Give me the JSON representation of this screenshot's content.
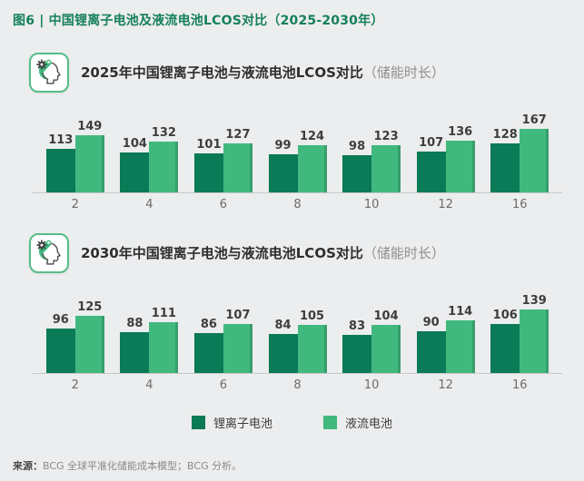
{
  "title": "图6 | 中国锂离子电池及液流电池LCOS对比（2025-2030年）",
  "colors": {
    "title_green": "#15805c",
    "dark_green": "#0b7a57",
    "light_green": "#41b97e",
    "background": "#ecedee",
    "axis_line": "#c6c8c9",
    "icon_border": "#57bd88"
  },
  "icons": {
    "section_badge": "head-with-gear-icon"
  },
  "sections": [
    {
      "title": "2025年中国锂离子电池与液流电池LCOS对比",
      "suffix": "（储能时长）"
    },
    {
      "title": "2030年中国锂离子电池与液流电池LCOS对比",
      "suffix": "（储能时长）"
    }
  ],
  "chart_data": [
    {
      "type": "bar",
      "title": "2025年中国锂离子电池与液流电池LCOS对比（储能时长）",
      "categories": [
        "2",
        "4",
        "6",
        "8",
        "10",
        "12",
        "16"
      ],
      "series": [
        {
          "name": "锂离子电池",
          "color": "#0b7a57",
          "values": [
            113,
            104,
            101,
            99,
            98,
            107,
            128
          ]
        },
        {
          "name": "液流电池",
          "color": "#41b97e",
          "values": [
            149,
            132,
            127,
            124,
            123,
            136,
            167
          ]
        }
      ],
      "value_labels": true,
      "grid": false,
      "xlabel": "",
      "ylabel": "",
      "ylim": [
        0,
        180
      ],
      "legend_position": "bottom-center"
    },
    {
      "type": "bar",
      "title": "2030年中国锂离子电池与液流电池LCOS对比（储能时长）",
      "categories": [
        "2",
        "4",
        "6",
        "8",
        "10",
        "12",
        "16"
      ],
      "series": [
        {
          "name": "锂离子电池",
          "color": "#0b7a57",
          "values": [
            96,
            88,
            86,
            84,
            83,
            90,
            106
          ]
        },
        {
          "name": "液流电池",
          "color": "#41b97e",
          "values": [
            125,
            111,
            107,
            105,
            104,
            114,
            139
          ]
        }
      ],
      "value_labels": true,
      "grid": false,
      "xlabel": "",
      "ylabel": "",
      "ylim": [
        0,
        150
      ],
      "legend_position": "bottom-center"
    }
  ],
  "legend": {
    "items": [
      {
        "label": "锂离子电池",
        "color": "#0b7a57"
      },
      {
        "label": "液流电池",
        "color": "#41b97e"
      }
    ]
  },
  "source": {
    "label": "来源：",
    "text": "BCG 全球平准化储能成本模型；BCG 分析。"
  }
}
